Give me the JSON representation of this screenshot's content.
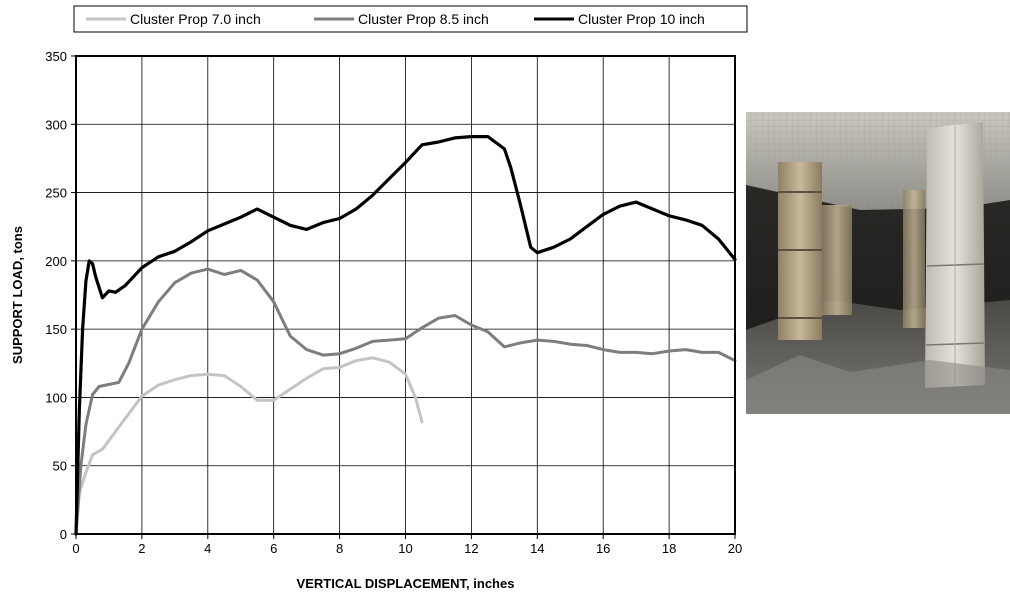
{
  "chart_data": {
    "type": "line",
    "xlabel": "VERTICAL DISPLACEMENT, inches",
    "ylabel": "SUPPORT LOAD, tons",
    "xlim": [
      0,
      20
    ],
    "ylim": [
      0,
      350
    ],
    "x_ticks": [
      0,
      2,
      4,
      6,
      8,
      10,
      12,
      14,
      16,
      18,
      20
    ],
    "y_ticks": [
      0,
      50,
      100,
      150,
      200,
      250,
      300,
      350
    ],
    "grid": true,
    "legend_position": "top",
    "series": [
      {
        "name": "Cluster Prop 7.0 inch",
        "color": "#c4c4c4",
        "x": [
          0,
          0.1,
          0.3,
          0.5,
          0.8,
          1.2,
          1.6,
          2,
          2.5,
          3,
          3.5,
          4,
          4.5,
          5,
          5.5,
          6,
          6.5,
          7,
          7.5,
          8,
          8.5,
          9,
          9.5,
          10,
          10.3,
          10.5
        ],
        "y": [
          0,
          30,
          45,
          58,
          62,
          75,
          88,
          101,
          109,
          113,
          116,
          117,
          116,
          108,
          98,
          98,
          106,
          114,
          121,
          122,
          127,
          129,
          126,
          117,
          100,
          82
        ]
      },
      {
        "name": "Cluster Prop 8.5 inch",
        "color": "#7d7d7d",
        "x": [
          0,
          0.15,
          0.3,
          0.5,
          0.7,
          0.9,
          1.3,
          1.6,
          2,
          2.5,
          3,
          3.5,
          4,
          4.5,
          5,
          5.5,
          6,
          6.5,
          7,
          7.5,
          8,
          8.5,
          9,
          9.5,
          10,
          10.5,
          11,
          11.5,
          12,
          12.5,
          13,
          13.5,
          14,
          14.5,
          15,
          15.5,
          16,
          16.5,
          17,
          17.5,
          18,
          18.5,
          19,
          19.5,
          20
        ],
        "y": [
          0,
          50,
          80,
          102,
          108,
          109,
          111,
          125,
          150,
          170,
          184,
          191,
          194,
          190,
          193,
          186,
          170,
          145,
          135,
          131,
          132,
          136,
          141,
          142,
          143,
          151,
          158,
          160,
          153,
          148,
          137,
          140,
          142,
          141,
          139,
          138,
          135,
          133,
          133,
          132,
          134,
          135,
          133,
          133,
          127
        ]
      },
      {
        "name": "Cluster Prop 10 inch",
        "color": "#000000",
        "x": [
          0,
          0.1,
          0.2,
          0.3,
          0.4,
          0.5,
          0.6,
          0.8,
          1,
          1.2,
          1.5,
          2,
          2.5,
          3,
          3.5,
          4,
          4.5,
          5,
          5.5,
          6,
          6.5,
          7,
          7.5,
          8,
          8.5,
          9,
          9.5,
          10,
          10.5,
          11,
          11.5,
          12,
          12.5,
          13,
          13.2,
          13.5,
          13.8,
          14,
          14.5,
          15,
          15.5,
          16,
          16.5,
          17,
          17.5,
          18,
          18.5,
          19,
          19.5,
          20
        ],
        "y": [
          0,
          90,
          150,
          185,
          200,
          198,
          188,
          173,
          178,
          177,
          182,
          195,
          203,
          207,
          214,
          222,
          227,
          232,
          238,
          232,
          226,
          223,
          228,
          231,
          238,
          248,
          260,
          272,
          285,
          287,
          290,
          291,
          291,
          282,
          268,
          240,
          210,
          206,
          210,
          216,
          225,
          234,
          240,
          243,
          238,
          233,
          230,
          226,
          216,
          201
        ]
      }
    ]
  },
  "photo": {
    "caption": "",
    "colors": {
      "background": "#5a5a55",
      "roof": "#b8b6ae",
      "timber": "#b5a58a",
      "concrete_prop": "#d8d4cc",
      "floor": "#6c6a66"
    }
  }
}
